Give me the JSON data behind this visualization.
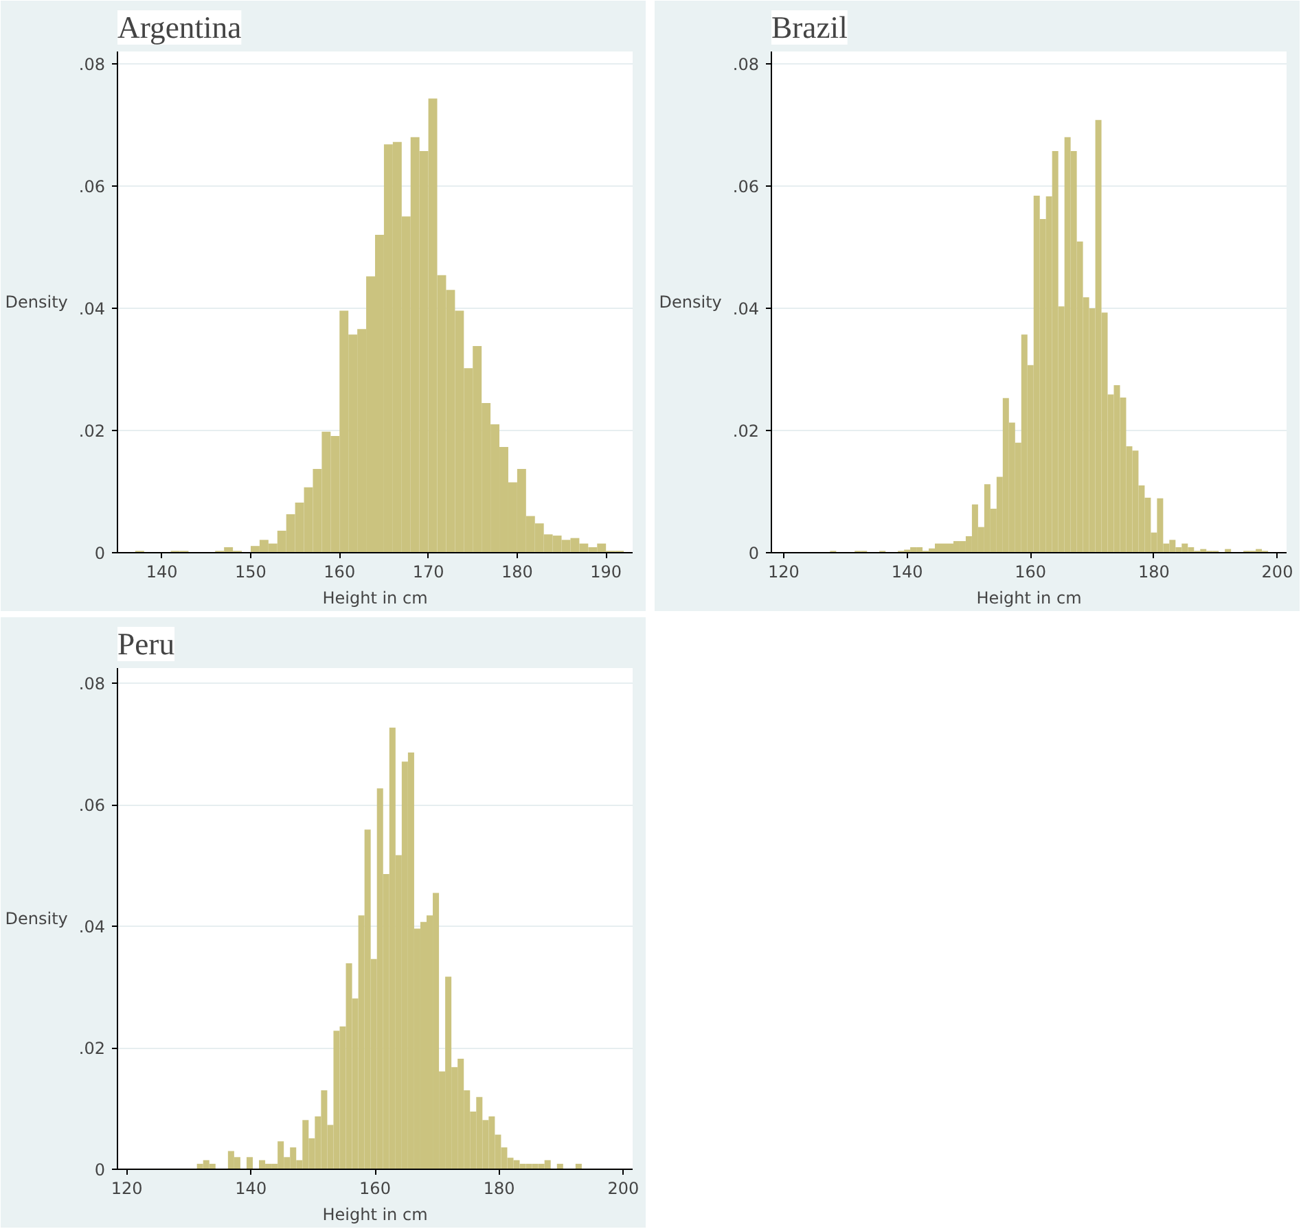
{
  "chart_data": [
    {
      "type": "histogram",
      "title": "Argentina",
      "xlabel": "Height in cm",
      "ylabel": "Density",
      "color": "#cbc37f",
      "grid": "y",
      "bins": [
        137,
        138,
        139,
        140,
        141,
        142,
        143,
        144,
        145,
        146,
        147,
        148,
        149,
        150,
        151,
        152,
        153,
        154,
        155,
        156,
        157,
        158,
        159,
        160,
        161,
        162,
        163,
        164,
        165,
        166,
        167,
        168,
        169,
        170,
        171,
        172,
        173,
        174,
        175,
        176,
        177,
        178,
        179,
        180,
        181,
        182,
        183,
        184,
        185,
        186,
        187,
        188,
        189,
        190,
        191,
        192
      ],
      "values": [
        0.0003,
        0,
        0,
        0,
        0.0003,
        0.0003,
        0,
        0,
        0,
        0.0003,
        0.0009,
        0.0003,
        0,
        0.0011,
        0.0021,
        0.0015,
        0.0036,
        0.0063,
        0.0082,
        0.0107,
        0.0137,
        0.0198,
        0.0191,
        0.0396,
        0.0357,
        0.0366,
        0.0452,
        0.052,
        0.0668,
        0.0672,
        0.055,
        0.068,
        0.0657,
        0.0743,
        0.0454,
        0.043,
        0.0396,
        0.0302,
        0.0338,
        0.0245,
        0.021,
        0.0173,
        0.0115,
        0.0137,
        0.006,
        0.0048,
        0.003,
        0.0028,
        0.0021,
        0.0024,
        0.0015,
        0.0009,
        0.0015,
        0.0003,
        0.0003
      ],
      "xlim": [
        135,
        193
      ],
      "xticks": [
        140,
        150,
        160,
        170,
        180,
        190
      ],
      "ylim": [
        0,
        0.082
      ],
      "yticks": [
        {
          "value": 0,
          "label": "0"
        },
        {
          "value": 0.02,
          "label": ".02"
        },
        {
          "value": 0.04,
          "label": ".04"
        },
        {
          "value": 0.06,
          "label": ".06"
        },
        {
          "value": 0.08,
          "label": ".08"
        }
      ]
    },
    {
      "type": "histogram",
      "title": "Brazil",
      "xlabel": "Height in cm",
      "ylabel": "Density",
      "color": "#cbc37f",
      "grid": "y",
      "bins": [
        127.5,
        128.5,
        129.5,
        130.5,
        131.5,
        132.5,
        133.5,
        134.5,
        135.5,
        136.5,
        137.5,
        138.5,
        139.5,
        140.5,
        141.5,
        142.5,
        143.5,
        144.5,
        145.5,
        146.5,
        147.5,
        148.5,
        149.5,
        150.5,
        151.5,
        152.5,
        153.5,
        154.5,
        155.5,
        156.5,
        157.5,
        158.5,
        159.5,
        160.5,
        161.5,
        162.5,
        163.5,
        164.5,
        165.5,
        166.5,
        167.5,
        168.5,
        169.5,
        170.5,
        171.5,
        172.5,
        173.5,
        174.5,
        175.5,
        176.5,
        177.5,
        178.5,
        179.5,
        180.5,
        181.5,
        182.5,
        183.5,
        184.5,
        185.5,
        186.5,
        187.5,
        188.5,
        189.5,
        190.5,
        191.5,
        192.5,
        193.5,
        194.5,
        195.5,
        196.5,
        197.5,
        198.5
      ],
      "values": [
        0.0003,
        0,
        0,
        0,
        0.0003,
        0.0003,
        0,
        0,
        0.0003,
        0,
        0,
        0.0003,
        0.0005,
        0.0009,
        0.0009,
        0.0003,
        0.0007,
        0.0015,
        0.0015,
        0.0015,
        0.0019,
        0.0019,
        0.0027,
        0.0079,
        0.0042,
        0.0112,
        0.0072,
        0.0124,
        0.0253,
        0.0213,
        0.018,
        0.0357,
        0.0307,
        0.0584,
        0.0546,
        0.0583,
        0.0657,
        0.0403,
        0.068,
        0.0657,
        0.0509,
        0.0418,
        0.04,
        0.0708,
        0.0393,
        0.0259,
        0.0274,
        0.0254,
        0.0174,
        0.0167,
        0.011,
        0.009,
        0.0033,
        0.0089,
        0.0015,
        0.0021,
        0.0009,
        0.0015,
        0.0009,
        0.0003,
        0.0006,
        0.0003,
        0.0003,
        0,
        0.0006,
        0,
        0,
        0.0003,
        0.0003,
        0.0006,
        0.0003
      ],
      "xlim": [
        118,
        201.5
      ],
      "xticks": [
        120,
        140,
        160,
        180,
        200
      ],
      "ylim": [
        0,
        0.082
      ],
      "yticks": [
        {
          "value": 0,
          "label": "0"
        },
        {
          "value": 0.02,
          "label": ".02"
        },
        {
          "value": 0.04,
          "label": ".04"
        },
        {
          "value": 0.06,
          "label": ".06"
        },
        {
          "value": 0.08,
          "label": ".08"
        }
      ]
    },
    {
      "type": "histogram",
      "title": "Peru",
      "xlabel": "Height in cm",
      "ylabel": "Density",
      "color": "#cbc37f",
      "grid": "y",
      "bins": [
        131.3,
        132.3,
        133.3,
        134.3,
        135.3,
        136.3,
        137.3,
        138.3,
        139.3,
        140.3,
        141.3,
        142.3,
        143.3,
        144.3,
        145.3,
        146.3,
        147.3,
        148.3,
        149.3,
        150.3,
        151.3,
        152.3,
        153.3,
        154.3,
        155.3,
        156.3,
        157.3,
        158.3,
        159.3,
        160.3,
        161.3,
        162.3,
        163.3,
        164.3,
        165.3,
        166.3,
        167.3,
        168.3,
        169.3,
        170.3,
        171.3,
        172.3,
        173.3,
        174.3,
        175.3,
        176.3,
        177.3,
        178.3,
        179.3,
        180.3,
        181.3,
        182.3,
        183.3,
        184.3,
        185.3,
        186.3,
        187.3,
        188.3,
        189.3,
        190.3,
        191.3,
        192.3,
        193.3
      ],
      "values": [
        0.0009,
        0.0015,
        0.0009,
        0,
        0,
        0.003,
        0.002,
        0,
        0.002,
        0,
        0.0015,
        0.0009,
        0.0009,
        0.0046,
        0.002,
        0.0036,
        0.0015,
        0.0081,
        0.0051,
        0.0087,
        0.013,
        0.0073,
        0.0228,
        0.0235,
        0.0339,
        0.0281,
        0.0418,
        0.0559,
        0.0346,
        0.0627,
        0.0486,
        0.0727,
        0.0517,
        0.0671,
        0.0686,
        0.0396,
        0.0407,
        0.0418,
        0.0455,
        0.0161,
        0.0317,
        0.0168,
        0.0182,
        0.013,
        0.0095,
        0.0119,
        0.0081,
        0.0087,
        0.0057,
        0.0036,
        0.0019,
        0.0015,
        0.0009,
        0.0009,
        0.0009,
        0.0009,
        0.0015,
        0,
        0.0009,
        0,
        0,
        0.0009
      ],
      "xlim": [
        118.5,
        201.5
      ],
      "xticks": [
        120,
        140,
        160,
        180,
        200
      ],
      "ylim": [
        0,
        0.0825
      ],
      "yticks": [
        {
          "value": 0,
          "label": "0"
        },
        {
          "value": 0.02,
          "label": ".02"
        },
        {
          "value": 0.04,
          "label": ".04"
        },
        {
          "value": 0.06,
          "label": ".06"
        },
        {
          "value": 0.08,
          "label": ".08"
        }
      ]
    }
  ]
}
